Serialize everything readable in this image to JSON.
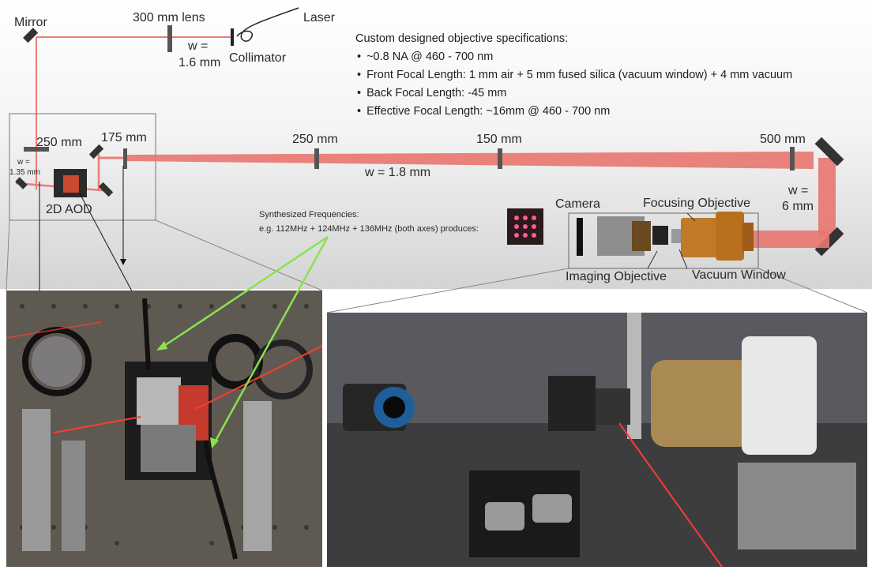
{
  "labels": {
    "mirror": "Mirror",
    "lens_300": "300 mm lens",
    "laser": "Laser",
    "w_16_a": "w =",
    "w_16_b": "1.6 mm",
    "collimator": "Collimator",
    "lens_250a": "250 mm",
    "lens_175": "175 mm",
    "w_135_a": "w =",
    "w_135_b": "1.35 mm",
    "aod": "2D AOD",
    "lens_250b": "250 mm",
    "lens_150": "150 mm",
    "w_18": "w = 1.8 mm",
    "lens_500": "500 mm",
    "w_6_a": "w =",
    "w_6_b": "6 mm",
    "camera": "Camera",
    "focusing_objective": "Focusing Objective",
    "imaging_objective": "Imaging Objective",
    "vacuum_window": "Vacuum Window"
  },
  "specs": {
    "title": "Custom designed objective specifications:",
    "items": [
      "~0.8 NA @ 460 - 700 nm",
      "Front Focal Length: 1 mm air + 5 mm fused silica (vacuum window) + 4 mm vacuum",
      "Back Focal Length: -45 mm",
      "Effective Focal Length: ~16mm @ 460 - 700 nm"
    ]
  },
  "synth": {
    "title": "Synthesized Frequencies:",
    "desc": "e.g. 112MHz + 124MHz + 136MHz (both axes) produces:"
  },
  "colors": {
    "beam": "#e8766f",
    "beam_dark": "#d9463c",
    "arrow_green": "#88e04a",
    "lens": "#5a5a5a"
  }
}
